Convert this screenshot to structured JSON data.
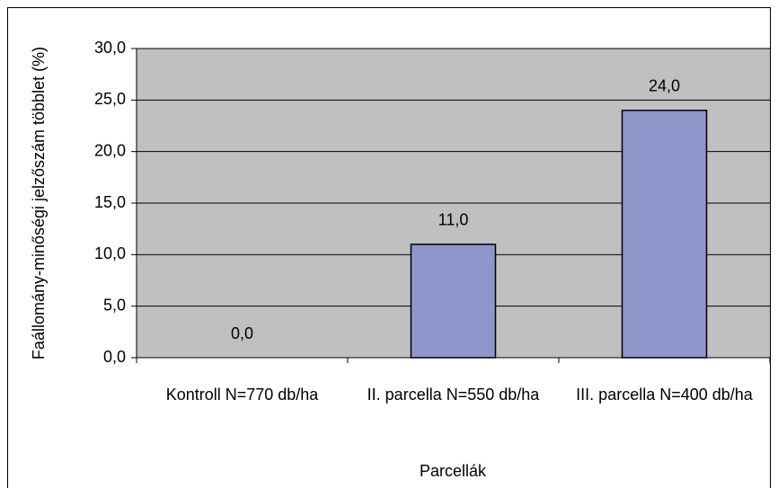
{
  "chart_data": {
    "type": "bar",
    "ylabel": "Faállomány-minőségi jelzőszám többlet (%)",
    "xlabel": "Parcellák",
    "categories": [
      "Kontroll N=770 db/ha",
      "II. parcella N=550 db/ha",
      "III. parcella N=400 db/ha"
    ],
    "values": [
      0,
      11,
      24
    ],
    "value_labels": [
      "0,0",
      "11,0",
      "24,0"
    ],
    "color": "#8f96cc",
    "ylim": [
      0,
      30
    ],
    "yticks": [
      {
        "value": 0,
        "label": "0,0"
      },
      {
        "value": 5,
        "label": "5,0"
      },
      {
        "value": 10,
        "label": "10,0"
      },
      {
        "value": 15,
        "label": "15,0"
      },
      {
        "value": 20,
        "label": "20,0"
      },
      {
        "value": 25,
        "label": "25,0"
      },
      {
        "value": 30,
        "label": "30,0"
      }
    ],
    "grid": true
  }
}
